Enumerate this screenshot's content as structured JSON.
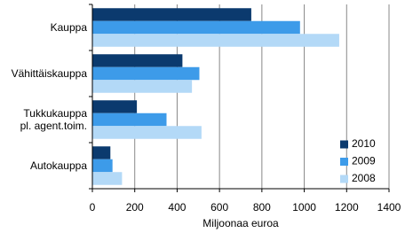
{
  "chart_data": {
    "type": "hbar",
    "categories": [
      "Kauppa",
      "Vähittäiskauppa",
      "Tukkukauppa\npl. agent.toim.",
      "Autokauppa"
    ],
    "series": [
      {
        "name": "2010",
        "color": "#0b3a6e",
        "values": [
          750,
          425,
          210,
          85
        ]
      },
      {
        "name": "2009",
        "color": "#3d9be9",
        "values": [
          980,
          505,
          350,
          95
        ]
      },
      {
        "name": "2008",
        "color": "#b3d9f7",
        "values": [
          1165,
          470,
          515,
          140
        ]
      }
    ],
    "xlabel": "Miljoonaa euroa",
    "xlim": [
      0,
      1400
    ],
    "xticks": [
      0,
      200,
      400,
      600,
      800,
      1000,
      1200,
      1400
    ],
    "grid": true,
    "legend": "right"
  }
}
